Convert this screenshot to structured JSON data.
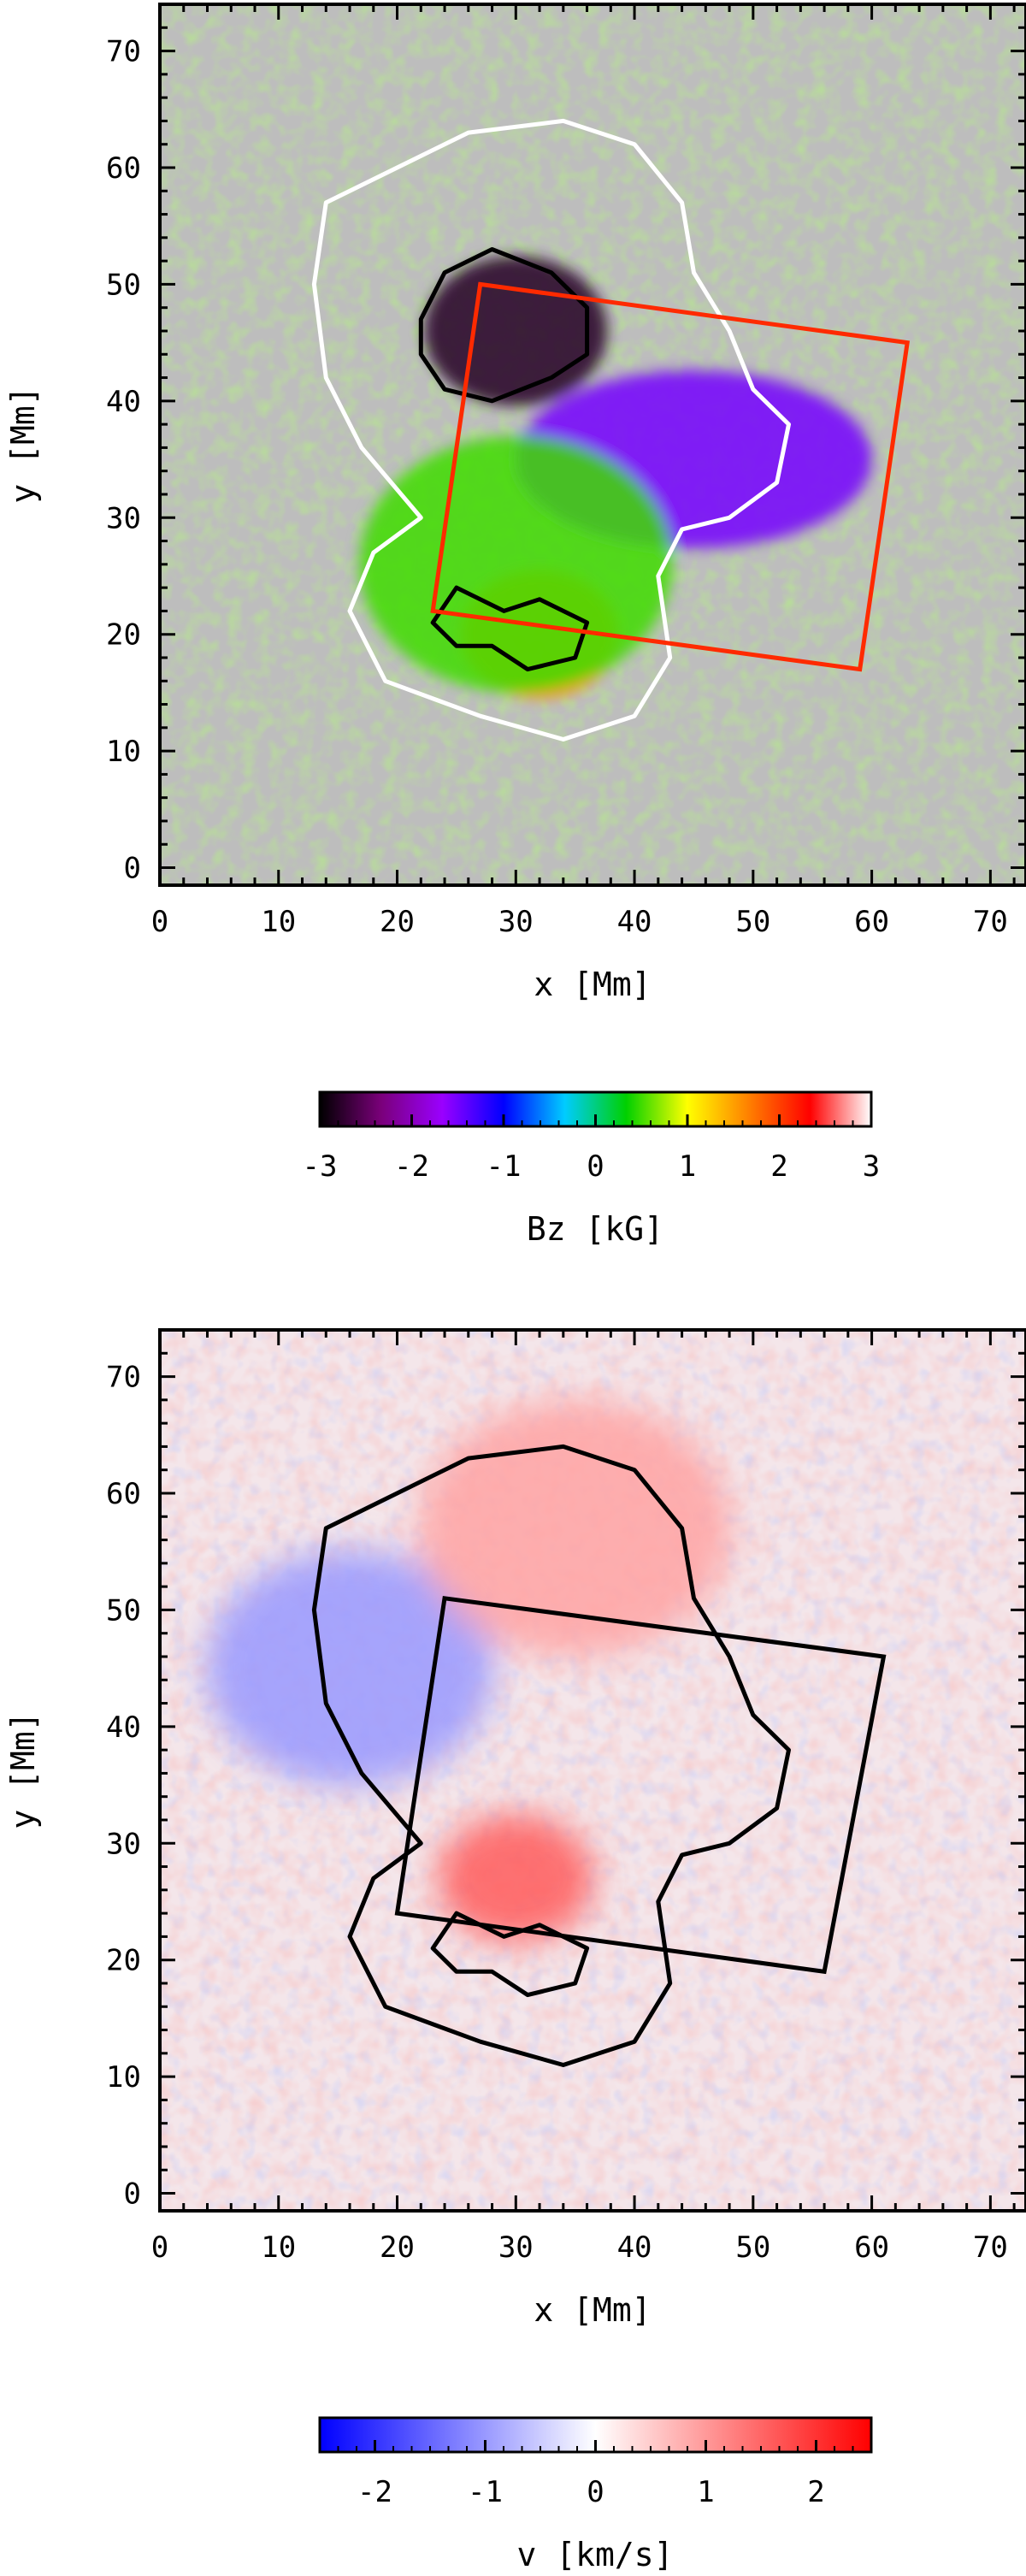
{
  "chart_data": [
    {
      "type": "heatmap",
      "panel": "magnetogram",
      "xlabel": "x [Mm]",
      "ylabel": "y [Mm]",
      "xlim": [
        0,
        73
      ],
      "ylim": [
        -1.5,
        74
      ],
      "xticks": [
        0,
        10,
        20,
        30,
        40,
        50,
        60,
        70
      ],
      "yticks": [
        0,
        10,
        20,
        30,
        40,
        50,
        60,
        70
      ],
      "background_color": "#bdbdbd",
      "colorbar": {
        "label": "Bz [kG]",
        "range": [
          -3,
          3
        ],
        "ticks": [
          "-3",
          "-2",
          "-1",
          "0",
          "1",
          "2",
          "3"
        ],
        "colors": [
          "#000000",
          "#7a007a",
          "#9a00ff",
          "#0000ff",
          "#00ccff",
          "#00d000",
          "#ffff00",
          "#ff8000",
          "#ff0000",
          "#ffffff"
        ]
      },
      "features": [
        {
          "name": "negative umbra",
          "center": [
            30,
            46
          ],
          "value": -2.8
        },
        {
          "name": "negative plage",
          "center": [
            45,
            35
          ],
          "value": -1.5
        },
        {
          "name": "positive umbra",
          "center": [
            32,
            20
          ],
          "value": 1.6
        },
        {
          "name": "positive field",
          "center": [
            30,
            26
          ],
          "value": 0.5
        }
      ],
      "contours": [
        {
          "name": "white contour",
          "color": "#ffffff",
          "path": [
            [
              14,
              57
            ],
            [
              20,
              60
            ],
            [
              26,
              63
            ],
            [
              34,
              64
            ],
            [
              40,
              62
            ],
            [
              44,
              57
            ],
            [
              45,
              51
            ],
            [
              48,
              46
            ],
            [
              50,
              41
            ],
            [
              53,
              38
            ],
            [
              52,
              33
            ],
            [
              48,
              30
            ],
            [
              44,
              29
            ],
            [
              42,
              25
            ],
            [
              43,
              18
            ],
            [
              40,
              13
            ],
            [
              34,
              11
            ],
            [
              27,
              13
            ],
            [
              19,
              16
            ],
            [
              16,
              22
            ],
            [
              18,
              27
            ],
            [
              22,
              30
            ],
            [
              17,
              36
            ],
            [
              14,
              42
            ],
            [
              13,
              50
            ]
          ]
        },
        {
          "name": "black contour",
          "color": "#000000",
          "path": [
            [
              22,
              47
            ],
            [
              24,
              51
            ],
            [
              28,
              53
            ],
            [
              33,
              51
            ],
            [
              36,
              48
            ],
            [
              36,
              44
            ],
            [
              33,
              42
            ],
            [
              28,
              40
            ],
            [
              24,
              41
            ],
            [
              22,
              44
            ]
          ]
        },
        {
          "name": "black contour",
          "color": "#000000",
          "path": [
            [
              23,
              21
            ],
            [
              25,
              24
            ],
            [
              29,
              22
            ],
            [
              32,
              23
            ],
            [
              36,
              21
            ],
            [
              35,
              18
            ],
            [
              31,
              17
            ],
            [
              28,
              19
            ],
            [
              25,
              19
            ]
          ]
        }
      ],
      "box": {
        "color": "#ff2a00",
        "corners": [
          [
            27,
            50
          ],
          [
            63,
            45
          ],
          [
            59,
            17
          ],
          [
            23,
            22
          ]
        ]
      }
    },
    {
      "type": "heatmap",
      "panel": "velocity",
      "xlabel": "x [Mm]",
      "ylabel": "y [Mm]",
      "xlim": [
        0,
        73
      ],
      "ylim": [
        -1.5,
        74
      ],
      "xticks": [
        0,
        10,
        20,
        30,
        40,
        50,
        60,
        70
      ],
      "yticks": [
        0,
        10,
        20,
        30,
        40,
        50,
        60,
        70
      ],
      "colorbar": {
        "label": "v [km/s]",
        "range": [
          -2.5,
          2.5
        ],
        "ticks": [
          "-2",
          "-1",
          "0",
          "1",
          "2"
        ],
        "colors": [
          "#0000ff",
          "#ffffff",
          "#ff0000"
        ]
      },
      "features": [
        {
          "name": "blueshift region",
          "center": [
            16,
            45
          ],
          "value": -1.0
        },
        {
          "name": "redshift region",
          "center": [
            35,
            57
          ],
          "value": 0.9
        },
        {
          "name": "redshift band",
          "center": [
            30,
            27
          ],
          "value": 1.6
        }
      ],
      "contours": [
        {
          "name": "black contour",
          "color": "#000000",
          "path": [
            [
              14,
              57
            ],
            [
              20,
              60
            ],
            [
              26,
              63
            ],
            [
              34,
              64
            ],
            [
              40,
              62
            ],
            [
              44,
              57
            ],
            [
              45,
              51
            ],
            [
              48,
              46
            ],
            [
              50,
              41
            ],
            [
              53,
              38
            ],
            [
              52,
              33
            ],
            [
              48,
              30
            ],
            [
              44,
              29
            ],
            [
              42,
              25
            ],
            [
              43,
              18
            ],
            [
              40,
              13
            ],
            [
              34,
              11
            ],
            [
              27,
              13
            ],
            [
              19,
              16
            ],
            [
              16,
              22
            ],
            [
              18,
              27
            ],
            [
              22,
              30
            ],
            [
              17,
              36
            ],
            [
              14,
              42
            ],
            [
              13,
              50
            ]
          ]
        },
        {
          "name": "black contour",
          "color": "#000000",
          "path": [
            [
              23,
              21
            ],
            [
              25,
              24
            ],
            [
              29,
              22
            ],
            [
              32,
              23
            ],
            [
              36,
              21
            ],
            [
              35,
              18
            ],
            [
              31,
              17
            ],
            [
              28,
              19
            ],
            [
              25,
              19
            ]
          ]
        }
      ],
      "box": {
        "color": "#000000",
        "corners": [
          [
            24,
            51
          ],
          [
            61,
            46
          ],
          [
            56,
            19
          ],
          [
            20,
            24
          ]
        ]
      }
    }
  ]
}
